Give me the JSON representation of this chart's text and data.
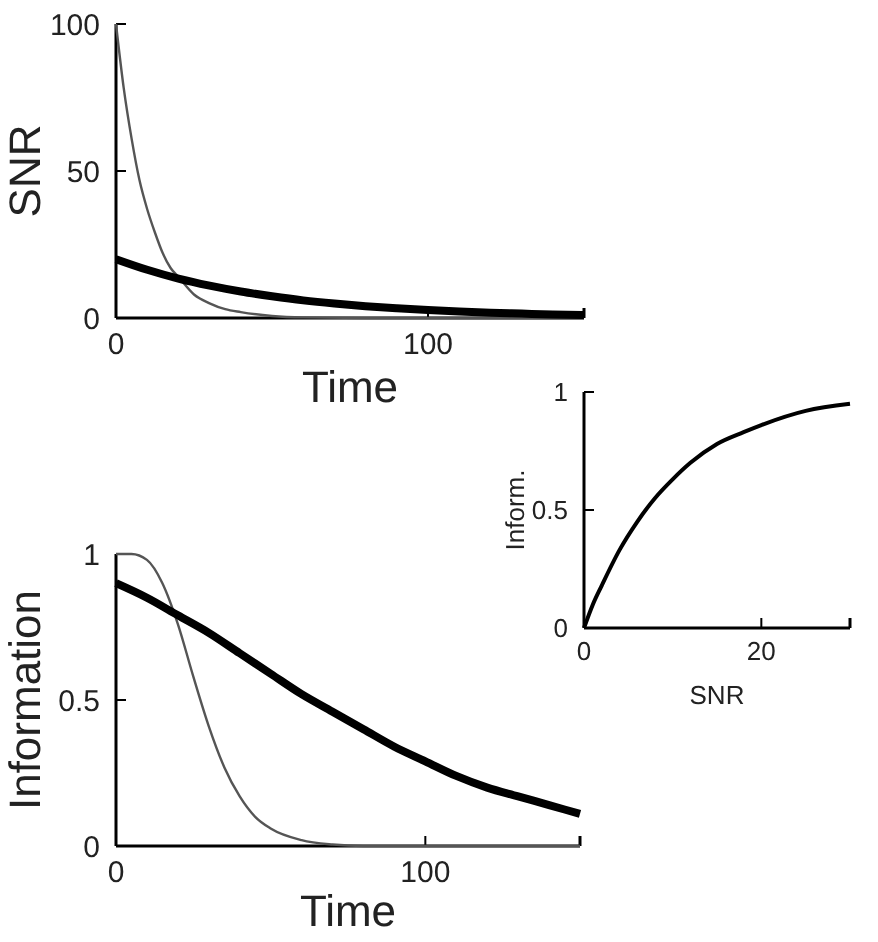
{
  "chart_data": [
    {
      "type": "line",
      "xlabel": "Time",
      "ylabel": "SNR",
      "xlim": [
        0,
        150
      ],
      "ylim": [
        0,
        100
      ],
      "xticks": [
        0,
        100
      ],
      "yticks": [
        0,
        50,
        100
      ],
      "grid": false,
      "line_style": "solid",
      "series": [
        {
          "color": "#555555",
          "x": [
            0,
            2.5,
            5,
            7.5,
            10,
            12.5,
            15,
            17.5,
            20,
            25,
            30,
            35,
            40,
            50,
            60,
            80,
            100,
            150
          ],
          "values": [
            100,
            78,
            61,
            47,
            37,
            29,
            22,
            17,
            14,
            8,
            5,
            3,
            2,
            0.7,
            0.2,
            0,
            0,
            0
          ]
        },
        {
          "color": "#000000",
          "x": [
            0,
            10,
            20,
            30,
            40,
            50,
            60,
            70,
            80,
            90,
            100,
            110,
            120,
            130,
            140,
            150
          ],
          "values": [
            20,
            16.4,
            13.4,
            11,
            9,
            7.4,
            6,
            4.9,
            4,
            3.3,
            2.7,
            2.2,
            1.8,
            1.5,
            1.2,
            1
          ]
        }
      ]
    },
    {
      "type": "line",
      "xlabel": "SNR",
      "ylabel": "Inform.",
      "xlim": [
        0,
        30
      ],
      "ylim": [
        0,
        1
      ],
      "xticks": [
        0,
        20
      ],
      "yticks": [
        0,
        0.5,
        1
      ],
      "grid": false,
      "line_style": "solid",
      "series": [
        {
          "color": "#000000",
          "x": [
            0,
            1,
            2,
            4,
            6,
            8,
            10,
            12,
            15,
            18,
            20,
            25,
            30
          ],
          "values": [
            0,
            0.1,
            0.18,
            0.33,
            0.45,
            0.55,
            0.63,
            0.7,
            0.78,
            0.83,
            0.86,
            0.92,
            0.95
          ]
        }
      ]
    },
    {
      "type": "line",
      "xlabel": "Time",
      "ylabel": "Information",
      "xlim": [
        0,
        150
      ],
      "ylim": [
        0,
        1
      ],
      "xticks": [
        0,
        100
      ],
      "yticks": [
        0,
        0.5,
        1
      ],
      "grid": false,
      "line_style": "solid",
      "series": [
        {
          "color": "#555555",
          "x": [
            0,
            5,
            10,
            15,
            20,
            25,
            30,
            35,
            40,
            45,
            50,
            60,
            70,
            80,
            100,
            150
          ],
          "values": [
            1,
            1,
            0.98,
            0.9,
            0.76,
            0.58,
            0.41,
            0.27,
            0.17,
            0.1,
            0.06,
            0.02,
            0.005,
            0,
            0,
            0
          ]
        },
        {
          "color": "#000000",
          "x": [
            0,
            10,
            20,
            30,
            40,
            50,
            60,
            70,
            80,
            90,
            100,
            110,
            120,
            130,
            140,
            150
          ],
          "values": [
            0.9,
            0.85,
            0.79,
            0.73,
            0.66,
            0.59,
            0.52,
            0.46,
            0.4,
            0.34,
            0.29,
            0.24,
            0.2,
            0.17,
            0.14,
            0.11
          ]
        }
      ]
    }
  ]
}
